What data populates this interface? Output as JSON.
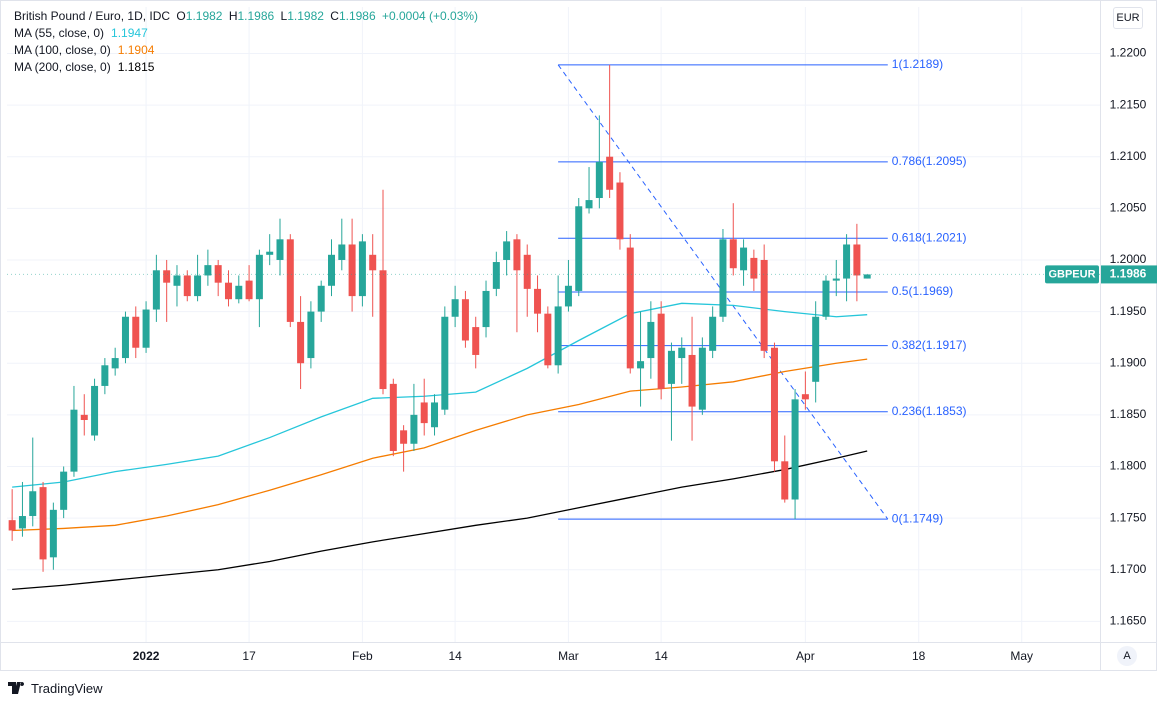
{
  "chart_data": {
    "type": "candlestick",
    "title": "British Pound / Euro, 1D, IDC",
    "ohlc_labels": [
      "O",
      "H",
      "L",
      "C"
    ],
    "change": "+0.0004 (+0.03%)",
    "symbol": "GBPEUR",
    "currency": "EUR",
    "scale_mode": "A",
    "brand": "TradingView",
    "candles": {
      "up_color": "#26a69a",
      "down_color": "#ef5350",
      "x": [
        0,
        1,
        2,
        3,
        4,
        5,
        6,
        7,
        8,
        9,
        10,
        11,
        12,
        13,
        14,
        15,
        16,
        17,
        18,
        19,
        20,
        21,
        22,
        23,
        24,
        25,
        26,
        27,
        28,
        29,
        30,
        31,
        32,
        33,
        34,
        35,
        36,
        37,
        38,
        39,
        40,
        41,
        42,
        43,
        44,
        45,
        46,
        47,
        48,
        49,
        50,
        51,
        52,
        53,
        54,
        55,
        56,
        57,
        58,
        59,
        60,
        61,
        62,
        63,
        64,
        65,
        66,
        67,
        68,
        69,
        70,
        71,
        72,
        73,
        74,
        75,
        76,
        77,
        78,
        79,
        80,
        81,
        82,
        83
      ],
      "open": [
        1.1748,
        1.174,
        1.1752,
        1.178,
        1.1712,
        1.1758,
        1.1795,
        1.185,
        1.183,
        1.1878,
        1.1895,
        1.1905,
        1.1945,
        1.1915,
        1.1952,
        1.199,
        1.1975,
        1.1985,
        1.1965,
        1.1985,
        1.1995,
        1.1978,
        1.1962,
        1.198,
        1.1962,
        1.2005,
        1.2,
        1.202,
        1.194,
        1.1905,
        1.195,
        1.1975,
        1.2,
        1.2015,
        1.1965,
        1.2005,
        1.199,
        1.188,
        1.1835,
        1.1822,
        1.1862,
        1.1838,
        1.1855,
        1.1945,
        1.1962,
        1.1935,
        1.1935,
        1.1972,
        1.2,
        1.202,
        1.2005,
        1.1972,
        1.1948,
        1.1898,
        1.1955,
        1.197,
        1.205,
        1.206,
        1.21,
        1.2075,
        1.2012,
        1.1895,
        1.1905,
        1.1948,
        1.188,
        1.1905,
        1.1908,
        1.1855,
        1.1912,
        1.1945,
        1.202,
        1.199,
        1.2002,
        1.2,
        1.1915,
        1.1805,
        1.1768,
        1.187,
        1.1882,
        1.1945,
        1.198,
        1.1982,
        1.2015,
        1.1982
      ],
      "high": [
        1.1778,
        1.1785,
        1.1828,
        1.1785,
        1.1765,
        1.18,
        1.1878,
        1.187,
        1.1885,
        1.1905,
        1.1915,
        1.195,
        1.1955,
        1.196,
        1.2005,
        1.2,
        1.1995,
        1.199,
        1.2005,
        1.201,
        1.2,
        1.199,
        1.1985,
        1.1995,
        1.201,
        1.2025,
        1.204,
        1.2025,
        1.1965,
        1.196,
        1.198,
        1.202,
        1.204,
        1.204,
        1.2025,
        1.2025,
        1.2068,
        1.1885,
        1.184,
        1.188,
        1.1885,
        1.187,
        1.1955,
        1.1975,
        1.197,
        1.1945,
        1.198,
        1.2008,
        1.2028,
        1.2025,
        1.2015,
        1.1985,
        1.1955,
        1.1985,
        1.2,
        1.206,
        1.209,
        1.214,
        1.2189,
        1.2085,
        1.2025,
        1.195,
        1.196,
        1.196,
        1.192,
        1.1925,
        1.1945,
        1.1925,
        1.1955,
        1.203,
        1.2055,
        1.202,
        1.201,
        1.2015,
        1.192,
        1.183,
        1.1875,
        1.1892,
        1.196,
        1.1985,
        1.2,
        1.2025,
        1.2035,
        1.1986
      ],
      "low": [
        1.1728,
        1.1732,
        1.1742,
        1.1698,
        1.17,
        1.175,
        1.179,
        1.183,
        1.1825,
        1.187,
        1.1888,
        1.19,
        1.1905,
        1.191,
        1.194,
        1.194,
        1.1955,
        1.196,
        1.196,
        1.1975,
        1.1965,
        1.1955,
        1.1958,
        1.196,
        1.1935,
        1.1995,
        1.1985,
        1.1935,
        1.1875,
        1.1895,
        1.194,
        1.1965,
        1.199,
        1.195,
        1.1955,
        1.1945,
        1.187,
        1.181,
        1.1795,
        1.1815,
        1.183,
        1.183,
        1.185,
        1.1935,
        1.1915,
        1.1895,
        1.1925,
        1.1965,
        1.1985,
        1.193,
        1.1945,
        1.193,
        1.1895,
        1.189,
        1.195,
        1.1965,
        1.2045,
        1.205,
        1.206,
        1.201,
        1.189,
        1.1858,
        1.1885,
        1.1865,
        1.1825,
        1.188,
        1.1825,
        1.185,
        1.1905,
        1.194,
        1.1985,
        1.1975,
        1.197,
        1.1905,
        1.1795,
        1.1765,
        1.1749,
        1.1855,
        1.1862,
        1.1942,
        1.1965,
        1.196,
        1.196,
        1.1982
      ],
      "close": [
        1.1738,
        1.1752,
        1.1776,
        1.171,
        1.1758,
        1.1795,
        1.1855,
        1.1845,
        1.1878,
        1.1898,
        1.1905,
        1.1945,
        1.1915,
        1.1952,
        1.199,
        1.1978,
        1.1985,
        1.1965,
        1.1985,
        1.1995,
        1.1978,
        1.1962,
        1.1975,
        1.1962,
        1.2005,
        1.2008,
        1.202,
        1.194,
        1.19,
        1.195,
        1.1975,
        1.2005,
        1.2015,
        1.1965,
        1.2018,
        1.199,
        1.1875,
        1.1815,
        1.1822,
        1.185,
        1.1842,
        1.1862,
        1.1945,
        1.1962,
        1.1922,
        1.1908,
        1.197,
        1.1998,
        1.2018,
        1.199,
        1.1972,
        1.1948,
        1.1898,
        1.1955,
        1.1975,
        1.2052,
        1.2058,
        1.2095,
        1.2068,
        1.202,
        1.1895,
        1.1902,
        1.194,
        1.1875,
        1.1912,
        1.1915,
        1.1858,
        1.1915,
        1.1945,
        1.202,
        1.1992,
        1.2012,
        1.1982,
        1.1912,
        1.1805,
        1.1768,
        1.1865,
        1.1865,
        1.1945,
        1.198,
        1.1982,
        1.2015,
        1.1985,
        1.1986
      ]
    },
    "series": [
      {
        "name": "MA (55, close, 0)",
        "color": "#26c6da",
        "x": [
          0,
          5,
          10,
          15,
          20,
          25,
          30,
          35,
          40,
          45,
          50,
          55,
          60,
          65,
          70,
          75,
          80,
          83
        ],
        "values": [
          1.178,
          1.1785,
          1.1795,
          1.1802,
          1.181,
          1.1828,
          1.1848,
          1.1866,
          1.1868,
          1.1872,
          1.1895,
          1.1922,
          1.1948,
          1.1958,
          1.1956,
          1.195,
          1.1945,
          1.1947
        ]
      },
      {
        "name": "MA (100, close, 0)",
        "color": "#f57c00",
        "x": [
          0,
          5,
          10,
          15,
          20,
          25,
          30,
          35,
          40,
          45,
          50,
          55,
          60,
          65,
          70,
          75,
          80,
          83
        ],
        "values": [
          1.1738,
          1.174,
          1.1743,
          1.1752,
          1.1763,
          1.1777,
          1.1792,
          1.1808,
          1.1818,
          1.1835,
          1.185,
          1.186,
          1.1873,
          1.1877,
          1.1882,
          1.1892,
          1.19,
          1.1904
        ]
      },
      {
        "name": "MA (200, close, 0)",
        "color": "#000000",
        "x": [
          0,
          5,
          10,
          15,
          20,
          25,
          30,
          35,
          40,
          45,
          50,
          55,
          60,
          65,
          70,
          75,
          80,
          83
        ],
        "values": [
          1.1681,
          1.1685,
          1.169,
          1.1695,
          1.17,
          1.1708,
          1.1718,
          1.1727,
          1.1735,
          1.1743,
          1.175,
          1.176,
          1.177,
          1.178,
          1.1788,
          1.1797,
          1.1808,
          1.1815
        ]
      }
    ],
    "fib": {
      "color": "#2962ff",
      "x": [
        53,
        85
      ],
      "levels": [
        {
          "value": 1.2189,
          "label": "1(1.2189)"
        },
        {
          "value": 1.2095,
          "label": "0.786(1.2095)"
        },
        {
          "value": 1.2021,
          "label": "0.618(1.2021)"
        },
        {
          "value": 1.1969,
          "label": "0.5(1.1969)"
        },
        {
          "value": 1.1917,
          "label": "0.382(1.1917)"
        },
        {
          "value": 1.1853,
          "label": "0.236(1.1853)"
        },
        {
          "value": 1.1749,
          "label": "0(1.1749)"
        }
      ]
    },
    "xlim": [
      -0.5,
      105.6
    ],
    "xticks": [
      {
        "value": 13,
        "label": "2022"
      },
      {
        "value": 23,
        "label": "17"
      },
      {
        "value": 34,
        "label": "Feb"
      },
      {
        "value": 43,
        "label": "14"
      },
      {
        "value": 54,
        "label": "Mar"
      },
      {
        "value": 63,
        "label": "14"
      },
      {
        "value": 77,
        "label": "Apr"
      },
      {
        "value": 88,
        "label": "18"
      },
      {
        "value": 98,
        "label": "May"
      }
    ],
    "ylim": [
      1.163,
      1.2245
    ],
    "yticks": [
      {
        "value": 1.165,
        "label": "1.1650"
      },
      {
        "value": 1.17,
        "label": "1.1700"
      },
      {
        "value": 1.175,
        "label": "1.1750"
      },
      {
        "value": 1.18,
        "label": "1.1800"
      },
      {
        "value": 1.185,
        "label": "1.1850"
      },
      {
        "value": 1.19,
        "label": "1.1900"
      },
      {
        "value": 1.195,
        "label": "1.1950"
      },
      {
        "value": 1.2,
        "label": "1.2000"
      },
      {
        "value": 1.205,
        "label": "1.2050"
      },
      {
        "value": 1.21,
        "label": "1.2100"
      },
      {
        "value": 1.215,
        "label": "1.2150"
      },
      {
        "value": 1.22,
        "label": "1.2200"
      }
    ],
    "grid": true
  }
}
